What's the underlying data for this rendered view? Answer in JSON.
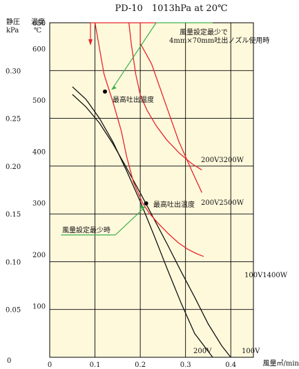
{
  "chart_data": {
    "type": "line",
    "title": "PD-10　1013hPa at 20℃",
    "y_left_label": [
      "静圧",
      "kPa"
    ],
    "y_right_label": [
      "温度",
      "℃"
    ],
    "x_label": "風量㎥/min",
    "x_ticks": [
      "0",
      "0.1",
      "0.2",
      "0.3",
      "0.4"
    ],
    "x_zero_label": "0",
    "pressure_ticks": [
      "0.05",
      "0.10",
      "0.15",
      "0.20",
      "0.25",
      "0.30"
    ],
    "pressure_zero": "0",
    "temperature_ticks": [
      "100",
      "200",
      "300",
      "400",
      "500",
      "600",
      "650"
    ],
    "pressure_axis_range": [
      0,
      0.35
    ],
    "temperature_axis_range": [
      0,
      650
    ],
    "x_range": [
      0,
      0.45
    ],
    "grid": true,
    "colors": {
      "background": "#FFF9DC",
      "pressure": "#111111",
      "temperature": "#E8232A",
      "annotation": "#3DB04A"
    },
    "series": [
      {
        "name": "200V",
        "kind": "pressure",
        "points": [
          [
            0.05,
            0.283
          ],
          [
            0.08,
            0.27
          ],
          [
            0.11,
            0.25
          ],
          [
            0.14,
            0.225
          ],
          [
            0.17,
            0.195
          ],
          [
            0.2,
            0.163
          ],
          [
            0.23,
            0.128
          ],
          [
            0.26,
            0.092
          ],
          [
            0.29,
            0.057
          ],
          [
            0.32,
            0.025
          ],
          [
            0.36,
            0.0
          ]
        ]
      },
      {
        "name": "100V",
        "kind": "pressure",
        "points": [
          [
            0.05,
            0.275
          ],
          [
            0.08,
            0.262
          ],
          [
            0.11,
            0.245
          ],
          [
            0.14,
            0.223
          ],
          [
            0.17,
            0.198
          ],
          [
            0.2,
            0.172
          ],
          [
            0.23,
            0.145
          ],
          [
            0.26,
            0.118
          ],
          [
            0.29,
            0.09
          ],
          [
            0.32,
            0.063
          ],
          [
            0.35,
            0.035
          ],
          [
            0.38,
            0.012
          ],
          [
            0.4,
            0.0
          ]
        ]
      },
      {
        "name": "200V3200W",
        "kind": "temperature",
        "points": [
          [
            0.2,
            650
          ],
          [
            0.2,
            610
          ],
          [
            0.225,
            570
          ],
          [
            0.245,
            520
          ],
          [
            0.265,
            470
          ],
          [
            0.285,
            420
          ],
          [
            0.31,
            370
          ],
          [
            0.336,
            320
          ]
        ]
      },
      {
        "name": "200V2500W",
        "kind": "temperature",
        "points": [
          [
            0.175,
            650
          ],
          [
            0.18,
            610
          ],
          [
            0.19,
            550
          ],
          [
            0.2,
            510
          ],
          [
            0.215,
            480
          ],
          [
            0.235,
            450
          ],
          [
            0.258,
            423
          ],
          [
            0.286,
            397
          ],
          [
            0.314,
            376
          ],
          [
            0.336,
            364
          ]
        ]
      },
      {
        "name": "100V1400W",
        "kind": "temperature",
        "points": [
          [
            0.1,
            650
          ],
          [
            0.11,
            600
          ],
          [
            0.12,
            550
          ],
          [
            0.14,
            495
          ],
          [
            0.158,
            440
          ],
          [
            0.17,
            390
          ],
          [
            0.185,
            340
          ],
          [
            0.205,
            300
          ],
          [
            0.22,
            280
          ],
          [
            0.24,
            260
          ],
          [
            0.262,
            240
          ],
          [
            0.285,
            222
          ],
          [
            0.305,
            210
          ],
          [
            0.325,
            201
          ],
          [
            0.34,
            196
          ]
        ]
      }
    ],
    "annotations": {
      "max_temp_label": "最高吐出温度",
      "wind_min_note_line1": "風量設定最少で",
      "wind_min_note_line2": "4mm×70mm吐出ノズル使用時",
      "wind_min_label": "風量設定最少時",
      "max_temp_points": [
        [
          0.122,
          0.278
        ],
        [
          0.213,
          0.161
        ]
      ],
      "series_labels": [
        "200V3200W",
        "200V2500W",
        "100V1400W",
        "200V",
        "100V"
      ]
    }
  }
}
